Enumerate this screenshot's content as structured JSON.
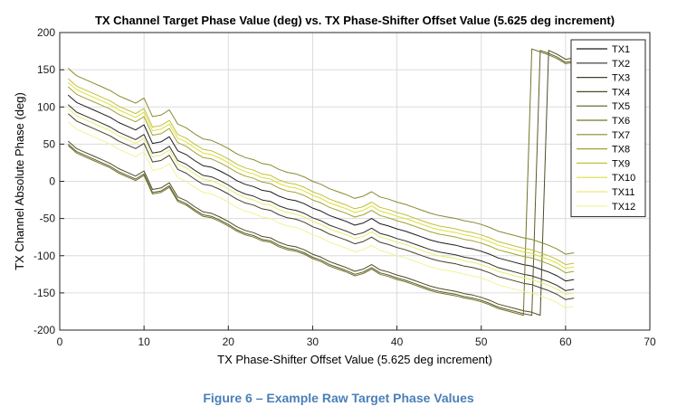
{
  "caption": "Figure 6 – Example Raw Target Phase Values",
  "chart_data": {
    "type": "line",
    "title": "TX Channel Target Phase Value (deg) vs. TX Phase-Shifter Offset Value (5.625 deg increment)",
    "xlabel": "TX Phase-Shifter Offset Value (5.625 deg increment)",
    "ylabel": "TX Channel Absolute Phase (deg)",
    "xlim": [
      0,
      70
    ],
    "ylim": [
      -200,
      200
    ],
    "xticks": [
      0,
      10,
      20,
      30,
      40,
      50,
      60,
      70
    ],
    "yticks": [
      -200,
      -150,
      -100,
      -50,
      0,
      50,
      100,
      150,
      200
    ],
    "grid": true,
    "legend_position": "top-right",
    "x": [
      1,
      2,
      3,
      4,
      5,
      6,
      7,
      8,
      9,
      10,
      11,
      12,
      13,
      14,
      15,
      16,
      17,
      18,
      19,
      20,
      21,
      22,
      23,
      24,
      25,
      26,
      27,
      28,
      29,
      30,
      31,
      32,
      33,
      34,
      35,
      36,
      37,
      38,
      39,
      40,
      41,
      42,
      43,
      44,
      45,
      46,
      47,
      48,
      49,
      50,
      51,
      52,
      53,
      54,
      55,
      56,
      57,
      58,
      59,
      60,
      61
    ],
    "base_shape": [
      0,
      -10,
      -15,
      -20,
      -25,
      -30,
      -37,
      -42,
      -47,
      -40,
      -65,
      -63,
      -56,
      -75,
      -80,
      -88,
      -95,
      -97,
      -102,
      -108,
      -115,
      -120,
      -123,
      -128,
      -130,
      -136,
      -140,
      -142,
      -146,
      -152,
      -156,
      -162,
      -166,
      -170,
      -175,
      -172,
      -166,
      -173,
      -176,
      -180,
      -183,
      -187,
      -191,
      -195,
      -198,
      -200,
      -202,
      -205,
      -207,
      -210,
      -214,
      -219,
      -222,
      -225,
      -228,
      -230,
      -234,
      -238,
      -243,
      -250,
      -248
    ],
    "series": [
      {
        "name": "TX1",
        "offset": 116,
        "color": "#1c1c1c"
      },
      {
        "name": "TX2",
        "offset": 103,
        "color": "#2f2f2a"
      },
      {
        "name": "TX3",
        "offset": 91,
        "color": "#41412c"
      },
      {
        "name": "TX4",
        "offset": 54,
        "color": "#4d4d28"
      },
      {
        "name": "TX5",
        "offset": 50,
        "color": "#5c5c26"
      },
      {
        "name": "TX6",
        "offset": 48,
        "color": "#73732a"
      },
      {
        "name": "TX7",
        "offset": 152,
        "color": "#8a8a2e"
      },
      {
        "name": "TX8",
        "offset": 127,
        "color": "#a3a332"
      },
      {
        "name": "TX9",
        "offset": 138,
        "color": "#c2c238"
      },
      {
        "name": "TX10",
        "offset": 133,
        "color": "#dede3a"
      },
      {
        "name": "TX11",
        "offset": 98,
        "color": "#ebeb70"
      },
      {
        "name": "TX12",
        "offset": 80,
        "color": "#f2f298"
      }
    ]
  }
}
